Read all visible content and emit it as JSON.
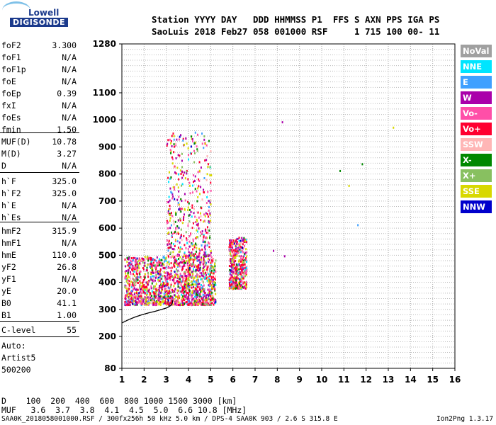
{
  "logo": {
    "top": "Lowell",
    "bottom": "DIGISONDE"
  },
  "header": {
    "line1": "Station YYYY DAY   DDD HHMMSS P1  FFS S AXN PPS IGA PS",
    "line2": "SaoLuis 2018 Feb27 058 001000 RSF     1 715 100 00- 11"
  },
  "params": [
    {
      "name": "foF2",
      "value": "3.300"
    },
    {
      "name": "foF1",
      "value": "N/A"
    },
    {
      "name": "foF1p",
      "value": "N/A"
    },
    {
      "name": "foE",
      "value": "N/A"
    },
    {
      "name": "foEp",
      "value": "0.39"
    },
    {
      "name": "fxI",
      "value": "N/A"
    },
    {
      "name": "foEs",
      "value": "N/A"
    },
    {
      "name": "fmin",
      "value": "1.50"
    },
    {
      "name": "MUF(D)",
      "value": "10.78"
    },
    {
      "name": "M(D)",
      "value": "3.27"
    },
    {
      "name": "D",
      "value": "N/A"
    },
    {
      "name": "h`F",
      "value": "325.0"
    },
    {
      "name": "h`F2",
      "value": "325.0"
    },
    {
      "name": "h`E",
      "value": "N/A"
    },
    {
      "name": "h`Es",
      "value": "N/A"
    },
    {
      "name": "hmF2",
      "value": "315.9"
    },
    {
      "name": "hmF1",
      "value": "N/A"
    },
    {
      "name": "hmE",
      "value": "110.0"
    },
    {
      "name": "yF2",
      "value": "26.8"
    },
    {
      "name": "yF1",
      "value": "N/A"
    },
    {
      "name": "yE",
      "value": "20.0"
    },
    {
      "name": "B0",
      "value": "41.1"
    },
    {
      "name": "B1",
      "value": "1.00"
    },
    {
      "name": "C-level",
      "value": "55"
    }
  ],
  "auto": {
    "label": "Auto:",
    "artist": "Artist5",
    "version": "500200"
  },
  "legend": [
    {
      "label": "NoVal",
      "bg": "#a0a0a0",
      "fg": "#ffffff"
    },
    {
      "label": "NNE",
      "bg": "#00e5ff",
      "fg": "#ffffff"
    },
    {
      "label": "E",
      "bg": "#3fa0ff",
      "fg": "#ffffff"
    },
    {
      "label": "W",
      "bg": "#aa00aa",
      "fg": "#ffffff"
    },
    {
      "label": "Vo-",
      "bg": "#ff4fa8",
      "fg": "#ffffff"
    },
    {
      "label": "Vo+",
      "bg": "#ff0030",
      "fg": "#ffffff"
    },
    {
      "label": "SSW",
      "bg": "#ffb6b6",
      "fg": "#ffffff"
    },
    {
      "label": "X-",
      "bg": "#008800",
      "fg": "#ffffff"
    },
    {
      "label": "X+",
      "bg": "#88c060",
      "fg": "#ffffff"
    },
    {
      "label": "SSE",
      "bg": "#d8d800",
      "fg": "#ffffff"
    },
    {
      "label": "NNW",
      "bg": "#0000cc",
      "fg": "#ffffff"
    }
  ],
  "distance_table": {
    "d_row": "D    100  200  400  600  800 1000 1500 3000 [km]",
    "muf_row": "MUF   3.6  3.7  3.8  4.1  4.5  5.0  6.6 10.8 [MHz]"
  },
  "footer": {
    "left": "SAA0K_2018058001000.RSF / 300fx256h 50 kHz 5.0 km / DPS-4 SAA0K 903 / 2.6 S 315.8 E",
    "right": "Ion2Png 1.3.17"
  },
  "chart_data": {
    "type": "scatter",
    "title": "",
    "xlabel": "",
    "ylabel": "",
    "x_ticks": [
      1,
      2,
      3,
      4,
      5,
      6,
      7,
      8,
      9,
      10,
      11,
      12,
      13,
      14,
      15,
      16
    ],
    "y_ticks": [
      80,
      200,
      300,
      400,
      500,
      600,
      700,
      800,
      900,
      1000,
      1100,
      1280
    ],
    "xlim": [
      1,
      16
    ],
    "ylim": [
      80,
      1280
    ],
    "grid": true,
    "x_unit": "MHz",
    "y_unit": "km",
    "trace": {
      "name": "",
      "x": [
        1.0,
        1.3,
        1.6,
        1.9,
        2.2,
        2.5,
        2.8,
        3.0,
        3.1,
        3.2,
        3.25,
        3.28,
        3.3
      ],
      "y": [
        250,
        262,
        272,
        280,
        287,
        293,
        300,
        305,
        309,
        314,
        319,
        326,
        335
      ]
    },
    "clusters": [
      {
        "name": "main",
        "x_range": [
          1.1,
          5.2
        ],
        "y_range": [
          320,
          500
        ],
        "density": "high"
      },
      {
        "name": "spread-upper",
        "x_range": [
          3.0,
          5.0
        ],
        "y_range": [
          500,
          960
        ],
        "density": "medium"
      },
      {
        "name": "tail",
        "x_range": [
          5.8,
          6.6
        ],
        "y_range": [
          380,
          570
        ],
        "density": "medium"
      }
    ],
    "isolated_points": [
      {
        "x": 8.2,
        "y": 995,
        "color": "#aa00aa"
      },
      {
        "x": 10.8,
        "y": 815,
        "color": "#008800"
      },
      {
        "x": 11.2,
        "y": 760,
        "color": "#d8d800"
      },
      {
        "x": 11.6,
        "y": 615,
        "color": "#3fa0ff"
      },
      {
        "x": 11.8,
        "y": 840,
        "color": "#008800"
      },
      {
        "x": 13.2,
        "y": 975,
        "color": "#d8d800"
      },
      {
        "x": 7.8,
        "y": 520,
        "color": "#aa00aa"
      },
      {
        "x": 8.3,
        "y": 500,
        "color": "#aa00aa"
      }
    ]
  }
}
